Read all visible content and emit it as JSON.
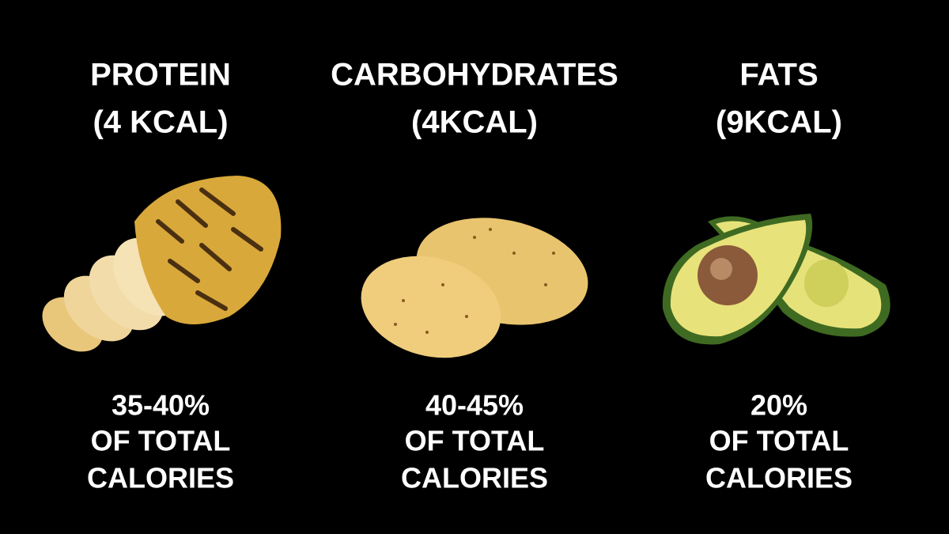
{
  "columns": [
    {
      "title": [
        "PROTEIN",
        "(4 KCAL)"
      ],
      "share": [
        "35-40%",
        "OF TOTAL",
        "CALORIES"
      ]
    },
    {
      "title": [
        "CARBOHYDRATES",
        "(4KCAL)"
      ],
      "share": [
        "40-45%",
        "OF TOTAL",
        "CALORIES"
      ]
    },
    {
      "title": [
        "FATS",
        "(9KCAL)"
      ],
      "share": [
        "20%",
        "OF TOTAL",
        "CALORIES"
      ]
    }
  ]
}
